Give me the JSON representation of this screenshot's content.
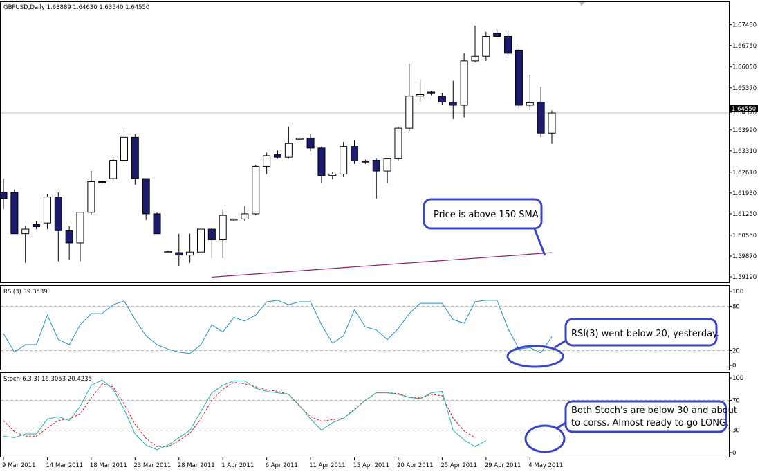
{
  "colors": {
    "bull_candle": "#ffffff",
    "bear_candle": "#1c1c6e",
    "candle_outline": "#000000",
    "sma": "#8b1a6a",
    "rsi_line": "#1e90d0",
    "stoch_main": "#20b2aa",
    "stoch_signal": "#e0101f",
    "callout_border": "#3a45c8",
    "grid_dash": "#b0b0b0",
    "price_line": "#c0c0c0"
  },
  "header": {
    "price_title": "GBPUSD,Daily  1.63889 1.64630 1.63540 1.64550",
    "rsi_title": "RSI(3) 39.3539",
    "stoch_title": "Stoch(6,3,3) 16.3053 20.4235"
  },
  "current_price_label": "1.64550",
  "callouts": {
    "price": "Price is above 150 SMA",
    "rsi": "RSI(3) went below 20, yesterday.",
    "stoch_line1": "Both Stoch's are below 30 and about",
    "stoch_line2": "to corss. Almost ready to go LONG."
  },
  "chart_data": [
    {
      "type": "candlestick",
      "title": "GBPUSD,Daily",
      "ylim": [
        1.5919,
        1.6774
      ],
      "y_ticks": [
        "1.67430",
        "1.66750",
        "1.66050",
        "1.65370",
        "1.64570",
        "1.63990",
        "1.63310",
        "1.62610",
        "1.61930",
        "1.61250",
        "1.60550",
        "1.59870",
        "1.59190"
      ],
      "x_ticks": [
        "9 Mar 2011",
        "14 Mar 2011",
        "18 Mar 2011",
        "23 Mar 2011",
        "28 Mar 2011",
        "1 Apr 2011",
        "6 Apr 2011",
        "11 Apr 2011",
        "15 Apr 2011",
        "20 Apr 2011",
        "25 Apr 2011",
        "29 Apr 2011",
        "4 May 2011"
      ],
      "ohlc": [
        [
          1.6195,
          1.624,
          1.614,
          1.6175
        ],
        [
          1.6195,
          1.6205,
          1.606,
          1.606
        ],
        [
          1.606,
          1.6085,
          1.5965,
          1.6075
        ],
        [
          1.609,
          1.61,
          1.6075,
          1.6083
        ],
        [
          1.6095,
          1.619,
          1.6075,
          1.618
        ],
        [
          1.618,
          1.6195,
          1.597,
          1.607
        ],
        [
          1.607,
          1.6085,
          1.5975,
          1.603
        ],
        [
          1.603,
          1.613,
          1.597,
          1.613
        ],
        [
          1.613,
          1.6265,
          1.612,
          1.623
        ],
        [
          1.623,
          1.6232,
          1.6224,
          1.6228
        ],
        [
          1.624,
          1.631,
          1.623,
          1.63
        ],
        [
          1.63,
          1.6405,
          1.6295,
          1.6375
        ],
        [
          1.6375,
          1.6385,
          1.622,
          1.624
        ],
        [
          1.624,
          1.624,
          1.6105,
          1.6125
        ],
        [
          1.6125,
          1.613,
          1.606,
          1.606
        ],
        [
          1.6,
          1.6005,
          1.5998,
          1.6002
        ],
        [
          1.5998,
          1.606,
          1.5955,
          1.599
        ],
        [
          1.599,
          1.606,
          1.5965,
          1.6
        ],
        [
          1.6,
          1.608,
          1.5995,
          1.6075
        ],
        [
          1.6075,
          1.608,
          1.598,
          1.604
        ],
        [
          1.604,
          1.614,
          1.598,
          1.612
        ],
        [
          1.6105,
          1.611,
          1.61,
          1.6108
        ],
        [
          1.6108,
          1.615,
          1.61,
          1.6125
        ],
        [
          1.6125,
          1.6285,
          1.612,
          1.628
        ],
        [
          1.628,
          1.6325,
          1.6255,
          1.6315
        ],
        [
          1.6318,
          1.6332,
          1.6305,
          1.631
        ],
        [
          1.631,
          1.641,
          1.6305,
          1.6355
        ],
        [
          1.637,
          1.6373,
          1.6367,
          1.6372
        ],
        [
          1.6372,
          1.6385,
          1.633,
          1.634
        ],
        [
          1.634,
          1.6345,
          1.6225,
          1.625
        ],
        [
          1.625,
          1.6262,
          1.6238,
          1.6255
        ],
        [
          1.6255,
          1.636,
          1.6245,
          1.6345
        ],
        [
          1.6345,
          1.6365,
          1.6288,
          1.6298
        ],
        [
          1.6298,
          1.6302,
          1.6288,
          1.6294
        ],
        [
          1.63,
          1.6305,
          1.6175,
          1.6265
        ],
        [
          1.6265,
          1.6305,
          1.6225,
          1.6305
        ],
        [
          1.6305,
          1.641,
          1.63,
          1.6405
        ],
        [
          1.6405,
          1.6615,
          1.6395,
          1.651
        ],
        [
          1.651,
          1.6565,
          1.649,
          1.6515
        ],
        [
          1.6523,
          1.6527,
          1.6513,
          1.6518
        ],
        [
          1.651,
          1.652,
          1.648,
          1.649
        ],
        [
          1.649,
          1.656,
          1.6435,
          1.648
        ],
        [
          1.648,
          1.665,
          1.644,
          1.6625
        ],
        [
          1.6625,
          1.674,
          1.662,
          1.664
        ],
        [
          1.664,
          1.672,
          1.6625,
          1.6705
        ],
        [
          1.6715,
          1.6725,
          1.6705,
          1.6705
        ],
        [
          1.6705,
          1.673,
          1.664,
          1.665
        ],
        [
          1.666,
          1.6665,
          1.647,
          1.648
        ],
        [
          1.648,
          1.658,
          1.6465,
          1.6488
        ],
        [
          1.649,
          1.654,
          1.6375,
          1.6389
        ],
        [
          1.6389,
          1.6463,
          1.6354,
          1.6455
        ]
      ],
      "sma_150": {
        "start_index": 19,
        "start_value": 1.5918,
        "end_value": 1.5998
      }
    },
    {
      "type": "line",
      "title": "RSI(3)",
      "ylim": [
        0,
        100
      ],
      "y_ticks": [
        100,
        80,
        20,
        0
      ],
      "levels": [
        80,
        20
      ],
      "series": [
        {
          "name": "RSI(3)",
          "values": [
            43,
            18,
            28,
            28,
            68,
            35,
            28,
            55,
            70,
            70,
            82,
            87,
            62,
            40,
            28,
            22,
            18,
            16,
            28,
            55,
            45,
            65,
            60,
            68,
            86,
            88,
            82,
            86,
            86,
            55,
            30,
            40,
            75,
            52,
            48,
            35,
            50,
            70,
            84,
            84,
            84,
            62,
            57,
            86,
            88,
            88,
            50,
            22,
            24,
            17,
            39
          ]
        }
      ]
    },
    {
      "type": "line",
      "title": "Stoch(6,3,3)",
      "ylim": [
        0,
        100
      ],
      "y_ticks": [
        100,
        70,
        30,
        0
      ],
      "levels": [
        70,
        30
      ],
      "series": [
        {
          "name": "Stoch main",
          "values": [
            22,
            20,
            25,
            25,
            45,
            48,
            43,
            62,
            90,
            97,
            85,
            58,
            25,
            10,
            4,
            10,
            20,
            30,
            55,
            80,
            90,
            96,
            96,
            86,
            82,
            80,
            78,
            63,
            45,
            30,
            40,
            46,
            57,
            70,
            80,
            80,
            78,
            74,
            72,
            80,
            82,
            30,
            17,
            8,
            16
          ]
        },
        {
          "name": "Stoch signal",
          "values": [
            43,
            28,
            22,
            22,
            33,
            43,
            45,
            52,
            73,
            92,
            88,
            65,
            38,
            19,
            8,
            8,
            16,
            26,
            45,
            70,
            85,
            94,
            92,
            88,
            84,
            82,
            78,
            62,
            48,
            42,
            44,
            46,
            58,
            70,
            80,
            80,
            79,
            74,
            73,
            78,
            76,
            46,
            29,
            20
          ]
        }
      ]
    }
  ]
}
